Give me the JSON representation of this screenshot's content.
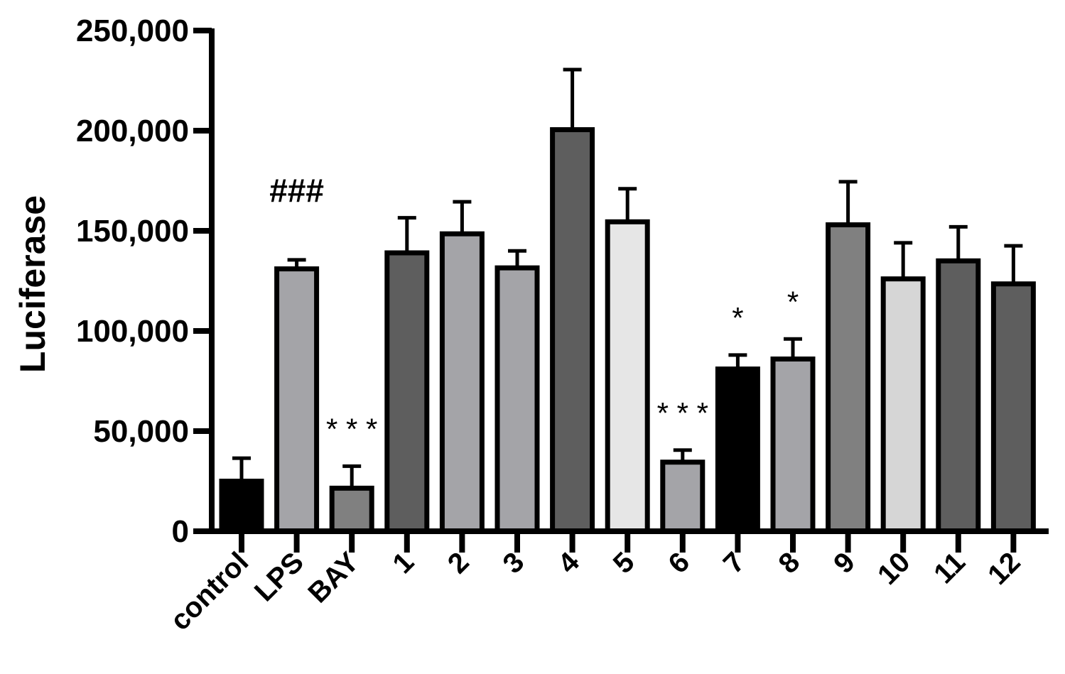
{
  "chart_data": {
    "type": "bar",
    "title": "",
    "xlabel": "",
    "ylabel": "Luciferase",
    "ylim": [
      0,
      250000
    ],
    "yticks": [
      0,
      50000,
      100000,
      150000,
      200000,
      250000
    ],
    "ytick_labels": [
      "0",
      "50,000",
      "100,000",
      "150,000",
      "200,000",
      "250,000"
    ],
    "grid": false,
    "legend": "none",
    "categories": [
      "control",
      "LPS",
      "BAY",
      "1",
      "2",
      "3",
      "4",
      "5",
      "6",
      "7",
      "8",
      "9",
      "10",
      "11",
      "12"
    ],
    "values": [
      25000,
      131000,
      21500,
      139000,
      148500,
      131500,
      200500,
      154500,
      34500,
      81000,
      86000,
      153000,
      126000,
      135000,
      123500
    ],
    "errors": [
      11500,
      4500,
      11000,
      17500,
      16000,
      8500,
      30000,
      16500,
      6000,
      7000,
      10000,
      21500,
      18000,
      17000,
      19000
    ],
    "colors": [
      "#000000",
      "#a4a4a8",
      "#808080",
      "#5e5e5e",
      "#a4a4a8",
      "#a4a4a8",
      "#5e5e5e",
      "#e6e6e6",
      "#a4a4a8",
      "#000000",
      "#a4a4a8",
      "#808080",
      "#d6d6d6",
      "#5e5e5e",
      "#5e5e5e"
    ],
    "annotations": [
      {
        "category": "LPS",
        "text": "###"
      },
      {
        "category": "BAY",
        "text": "* * *"
      },
      {
        "category": "6",
        "text": "* * *"
      },
      {
        "category": "7",
        "text": "*"
      },
      {
        "category": "8",
        "text": "*"
      }
    ]
  }
}
